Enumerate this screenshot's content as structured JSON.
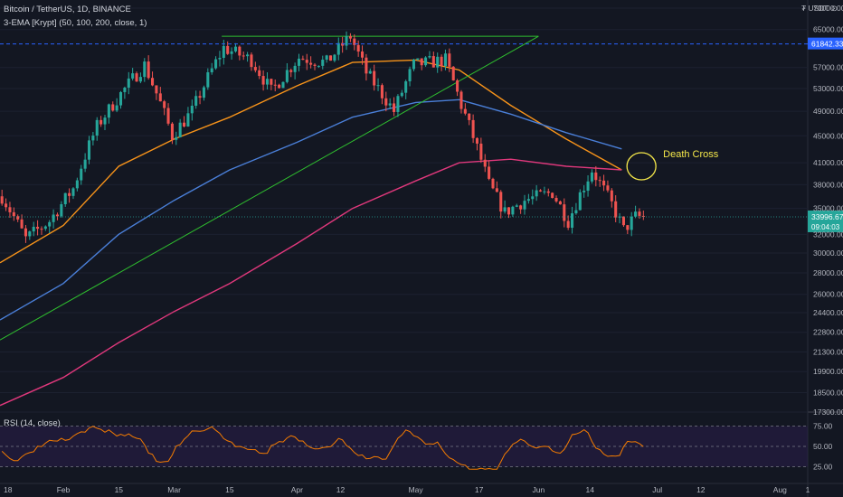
{
  "header": {
    "title": "Bitcoin / TetherUS, 1D, BINANCE",
    "indicator": "3-EMA [Krypt] (50, 100, 200, close, 1)",
    "currency_unit": "₮ USDT ⊙"
  },
  "rsi_panel": {
    "label": "RSI (14, close)",
    "levels": [
      "75.00",
      "50.00",
      "25.00"
    ]
  },
  "price_axis_labels": [
    "70000.00",
    "65000.00",
    "57000.00",
    "53000.00",
    "49000.00",
    "45000.00",
    "41000.00",
    "38000.00",
    "35000.00",
    "32000.00",
    "30000.00",
    "28000.00",
    "26000.00",
    "24400.00",
    "22800.00",
    "21300.00",
    "19900.00",
    "18500.00",
    "17300.00"
  ],
  "x_axis_labels": [
    "18",
    "Feb",
    "15",
    "Mar",
    "15",
    "Apr",
    "12",
    "May",
    "17",
    "Jun",
    "14",
    "Jul",
    "12",
    "Aug",
    "1"
  ],
  "price_markers": {
    "dotted_level": {
      "value": "61842.33",
      "color": "#2962ff"
    },
    "last_price": {
      "value": "33996.67",
      "countdown": "09:04:03",
      "color": "#26a69a"
    }
  },
  "annotation": {
    "text": "Death Cross",
    "color": "#f5e84a"
  },
  "colors": {
    "up": "#26a69a",
    "down": "#ef5350",
    "ema50": "#f7931a",
    "ema100": "#4a7fd8",
    "ema200": "#e0387c",
    "trendline": "#2fbf2f",
    "rsi": "#f57c00",
    "rsi_band": "#2a1e4a"
  },
  "chart_data": {
    "type": "candlestick",
    "title": "Bitcoin / TetherUS, 1D, BINANCE",
    "y_scale": "log",
    "ylim": [
      17300,
      72000
    ],
    "x_range": [
      "2021-01-16",
      "2021-08-08"
    ],
    "candle_count": 163,
    "series": [
      {
        "name": "EMA 50",
        "points": [
          [
            "2021-01-16",
            29000
          ],
          [
            "2021-02-01",
            33000
          ],
          [
            "2021-02-15",
            40500
          ],
          [
            "2021-03-01",
            44500
          ],
          [
            "2021-03-15",
            48000
          ],
          [
            "2021-04-01",
            53500
          ],
          [
            "2021-04-15",
            58000
          ],
          [
            "2021-05-01",
            58500
          ],
          [
            "2021-05-12",
            56500
          ],
          [
            "2021-05-25",
            50000
          ],
          [
            "2021-06-08",
            44500
          ],
          [
            "2021-06-22",
            40000
          ]
        ]
      },
      {
        "name": "EMA 100",
        "points": [
          [
            "2021-01-16",
            23800
          ],
          [
            "2021-02-01",
            27000
          ],
          [
            "2021-02-15",
            32000
          ],
          [
            "2021-03-01",
            36000
          ],
          [
            "2021-03-15",
            40000
          ],
          [
            "2021-04-01",
            44000
          ],
          [
            "2021-04-15",
            48000
          ],
          [
            "2021-05-01",
            50500
          ],
          [
            "2021-05-12",
            51000
          ],
          [
            "2021-05-25",
            48500
          ],
          [
            "2021-06-08",
            45500
          ],
          [
            "2021-06-22",
            43000
          ]
        ]
      },
      {
        "name": "EMA 200",
        "points": [
          [
            "2021-01-16",
            17700
          ],
          [
            "2021-02-01",
            19500
          ],
          [
            "2021-02-15",
            22000
          ],
          [
            "2021-03-01",
            24500
          ],
          [
            "2021-03-15",
            27000
          ],
          [
            "2021-04-01",
            31000
          ],
          [
            "2021-04-15",
            35000
          ],
          [
            "2021-05-01",
            38500
          ],
          [
            "2021-05-12",
            41000
          ],
          [
            "2021-05-25",
            41500
          ],
          [
            "2021-06-08",
            40500
          ],
          [
            "2021-06-22",
            40000
          ]
        ]
      }
    ],
    "trendlines": [
      {
        "from": [
          "2021-01-16",
          22200
        ],
        "to": [
          "2021-06-01",
          63500
        ]
      },
      {
        "from": [
          "2021-03-13",
          63500
        ],
        "to": [
          "2021-06-01",
          63500
        ]
      }
    ],
    "rsi": {
      "ylim": [
        10,
        90
      ],
      "levels": [
        75,
        50,
        25
      ]
    }
  }
}
